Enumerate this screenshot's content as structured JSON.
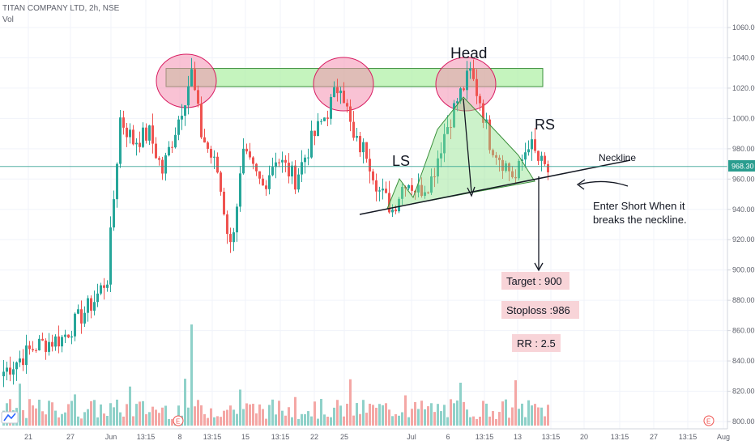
{
  "header": {
    "symbol": "TITAN COMPANY LTD, 2h, NSE",
    "volume_label": "Vol"
  },
  "colors": {
    "up": "#26a69a",
    "down": "#ef5350",
    "vol_up": "#8fd1c9",
    "vol_down": "#f4a7a5",
    "zone": "#b2f0a8",
    "circle": "#f48fb1",
    "price_line": "#2a9d8f",
    "label_bg": "#f8d4d8"
  },
  "price_label": "968.30",
  "chart_data": {
    "type": "candlestick",
    "title": "TITAN COMPANY LTD, 2h, NSE",
    "ylim": [
      795,
      1075
    ],
    "y_ticks": [
      "1060.00",
      "1040.00",
      "1020.00",
      "1000.00",
      "980.00",
      "960.00",
      "940.00",
      "920.00",
      "900.00",
      "880.00",
      "860.00",
      "840.00",
      "820.00",
      "800.00"
    ],
    "y_tick_values": [
      1060,
      1040,
      1020,
      1000,
      980,
      960,
      940,
      920,
      900,
      880,
      860,
      840,
      820,
      800
    ],
    "x_ticks": [
      "21",
      "27",
      "Jun",
      "13:15",
      "8",
      "13:15",
      "15",
      "13:15",
      "22",
      "25",
      "Jul",
      "6",
      "13:15",
      "13",
      "13:15",
      "20",
      "13:15",
      "27",
      "13:15",
      "Aug"
    ],
    "last_price": 968.3,
    "guide_points": [
      [
        0,
        833
      ],
      [
        10,
        850
      ],
      [
        18,
        855
      ],
      [
        22,
        865
      ],
      [
        28,
        880
      ],
      [
        32,
        895
      ],
      [
        36,
        1000
      ],
      [
        40,
        985
      ],
      [
        45,
        990
      ],
      [
        49,
        965
      ],
      [
        54,
        1000
      ],
      [
        58,
        1030
      ],
      [
        61,
        990
      ],
      [
        66,
        965
      ],
      [
        70,
        915
      ],
      [
        74,
        975
      ],
      [
        80,
        955
      ],
      [
        84,
        975
      ],
      [
        90,
        960
      ],
      [
        95,
        985
      ],
      [
        100,
        1005
      ],
      [
        104,
        1025
      ],
      [
        108,
        985
      ],
      [
        112,
        978
      ],
      [
        116,
        952
      ],
      [
        120,
        940
      ],
      [
        124,
        960
      ],
      [
        128,
        952
      ],
      [
        132,
        960
      ],
      [
        136,
        990
      ],
      [
        140,
        1012
      ],
      [
        144,
        1030
      ],
      [
        147,
        1012
      ],
      [
        150,
        985
      ],
      [
        154,
        972
      ],
      [
        158,
        960
      ],
      [
        162,
        985
      ],
      [
        165,
        972
      ],
      [
        168,
        965
      ]
    ],
    "annotations": {
      "head": "Head",
      "left_shoulder": "LS",
      "right_shoulder": "RS",
      "neckline": "Neckline",
      "note_line1": "Enter Short When it",
      "note_line2": "breaks the neckline.",
      "target": "Target : 900",
      "stoploss": "Stoploss :986",
      "rr": "RR : 2.5"
    }
  }
}
